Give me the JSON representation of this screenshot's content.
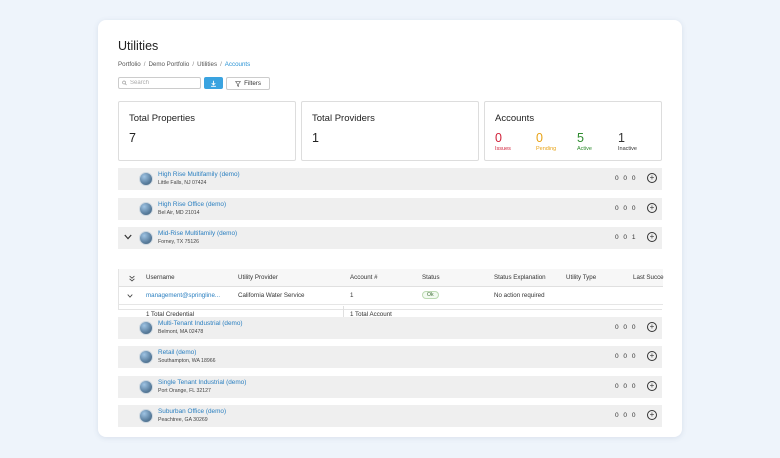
{
  "page": {
    "title": "Utilities"
  },
  "breadcrumb": [
    "Portfolio",
    "Demo Portfolio",
    "Utilities",
    "Accounts"
  ],
  "toolbar": {
    "search_placeholder": "Search",
    "filters_label": "Filters"
  },
  "stats": {
    "total_properties": {
      "label": "Total Properties",
      "value": "7"
    },
    "total_providers": {
      "label": "Total Providers",
      "value": "1"
    },
    "accounts": {
      "label": "Accounts",
      "items": [
        {
          "value": "0",
          "label": "Issues",
          "color": "#d0223a"
        },
        {
          "value": "0",
          "label": "Pending",
          "color": "#e8a317"
        },
        {
          "value": "5",
          "label": "Active",
          "color": "#2e8b2e"
        },
        {
          "value": "1",
          "label": "Inactive",
          "color": "#333333"
        }
      ]
    }
  },
  "properties": [
    {
      "name": "High Rise Multifamily (demo)",
      "address": "Little Falls, NJ 07424",
      "counts": "0 0 0"
    },
    {
      "name": "High Rise Office (demo)",
      "address": "Bel Air, MD 21014",
      "counts": "0 0 0"
    },
    {
      "name": "Mid-Rise Multifamily (demo)",
      "address": "Forney, TX 75126",
      "counts": "0 0 1"
    },
    {
      "name": "Multi-Tenant Industrial (demo)",
      "address": "Belmont, MA 02478",
      "counts": "0 0 0"
    },
    {
      "name": "Retail (demo)",
      "address": "Southampton, WA 18966",
      "counts": "0 0 0"
    },
    {
      "name": "Single Tenant Industrial (demo)",
      "address": "Port Orange, FL 32127",
      "counts": "0 0 0"
    },
    {
      "name": "Suburban Office (demo)",
      "address": "Peachtree, GA 30269",
      "counts": "0 0 0"
    }
  ],
  "subtable": {
    "headers": [
      "Username",
      "Utility Provider",
      "Account #",
      "Status",
      "Status Explanation",
      "Utility Type",
      "Last Succe"
    ],
    "row": {
      "username": "management@springline...",
      "provider": "California Water Service",
      "account": "1",
      "status": "Ok",
      "explanation": "No action required"
    },
    "footer": {
      "credentials": "1 Total Credential",
      "accounts": "1 Total Account"
    }
  }
}
